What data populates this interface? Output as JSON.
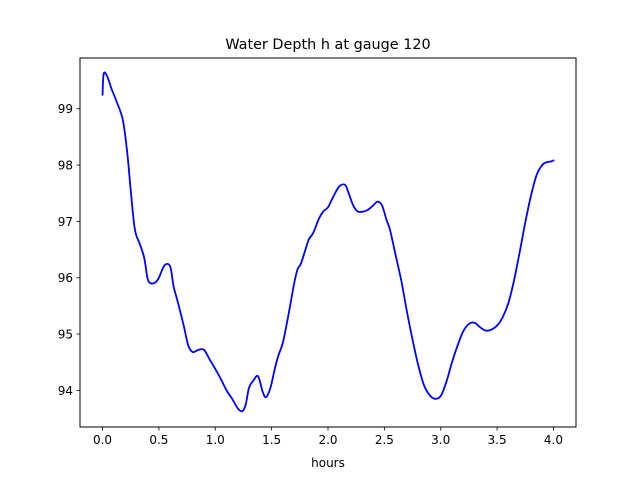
{
  "chart_data": {
    "type": "line",
    "title": "Water Depth h at gauge 120",
    "xlabel": "hours",
    "ylabel": "",
    "xlim": [
      -0.2,
      4.2
    ],
    "ylim": [
      93.35,
      99.9
    ],
    "xticks": [
      0.0,
      0.5,
      1.0,
      1.5,
      2.0,
      2.5,
      3.0,
      3.5,
      4.0
    ],
    "xtick_labels": [
      "0.0",
      "0.5",
      "1.0",
      "1.5",
      "2.0",
      "2.5",
      "3.0",
      "3.5",
      "4.0"
    ],
    "yticks": [
      94,
      95,
      96,
      97,
      98,
      99
    ],
    "ytick_labels": [
      "94",
      "95",
      "96",
      "97",
      "98",
      "99"
    ],
    "grid": false,
    "legend": "none",
    "series": [
      {
        "color": "#0000ff",
        "x": [
          0.0,
          0.01,
          0.04,
          0.08,
          0.12,
          0.18,
          0.22,
          0.25,
          0.28,
          0.3,
          0.33,
          0.37,
          0.4,
          0.43,
          0.47,
          0.5,
          0.55,
          0.6,
          0.63,
          0.67,
          0.72,
          0.76,
          0.8,
          0.85,
          0.9,
          0.95,
          1.0,
          1.05,
          1.1,
          1.15,
          1.2,
          1.24,
          1.27,
          1.3,
          1.34,
          1.38,
          1.42,
          1.45,
          1.49,
          1.53,
          1.56,
          1.6,
          1.65,
          1.7,
          1.73,
          1.76,
          1.8,
          1.83,
          1.87,
          1.92,
          1.96,
          2.0,
          2.05,
          2.1,
          2.15,
          2.18,
          2.22,
          2.26,
          2.3,
          2.35,
          2.4,
          2.44,
          2.48,
          2.52,
          2.55,
          2.6,
          2.65,
          2.7,
          2.75,
          2.8,
          2.85,
          2.9,
          2.95,
          3.0,
          3.05,
          3.1,
          3.15,
          3.2,
          3.25,
          3.3,
          3.35,
          3.4,
          3.45,
          3.5,
          3.55,
          3.6,
          3.65,
          3.7,
          3.75,
          3.8,
          3.85,
          3.9,
          3.94,
          3.97,
          4.0
        ],
        "y": [
          99.25,
          99.62,
          99.58,
          99.35,
          99.15,
          98.8,
          98.2,
          97.55,
          96.95,
          96.75,
          96.6,
          96.35,
          95.98,
          95.9,
          95.92,
          96.0,
          96.22,
          96.2,
          95.85,
          95.55,
          95.15,
          94.8,
          94.68,
          94.72,
          94.72,
          94.55,
          94.38,
          94.2,
          94.0,
          93.85,
          93.68,
          93.63,
          93.75,
          94.05,
          94.18,
          94.25,
          93.98,
          93.88,
          94.05,
          94.4,
          94.62,
          94.85,
          95.35,
          95.9,
          96.15,
          96.25,
          96.5,
          96.68,
          96.8,
          97.05,
          97.18,
          97.25,
          97.45,
          97.62,
          97.65,
          97.52,
          97.3,
          97.18,
          97.17,
          97.2,
          97.28,
          97.35,
          97.28,
          97.02,
          96.85,
          96.4,
          95.95,
          95.4,
          94.9,
          94.45,
          94.1,
          93.92,
          93.85,
          93.9,
          94.15,
          94.5,
          94.8,
          95.05,
          95.18,
          95.2,
          95.12,
          95.06,
          95.08,
          95.15,
          95.3,
          95.55,
          95.95,
          96.45,
          96.98,
          97.45,
          97.82,
          98.0,
          98.05,
          98.06,
          98.08
        ]
      }
    ]
  }
}
